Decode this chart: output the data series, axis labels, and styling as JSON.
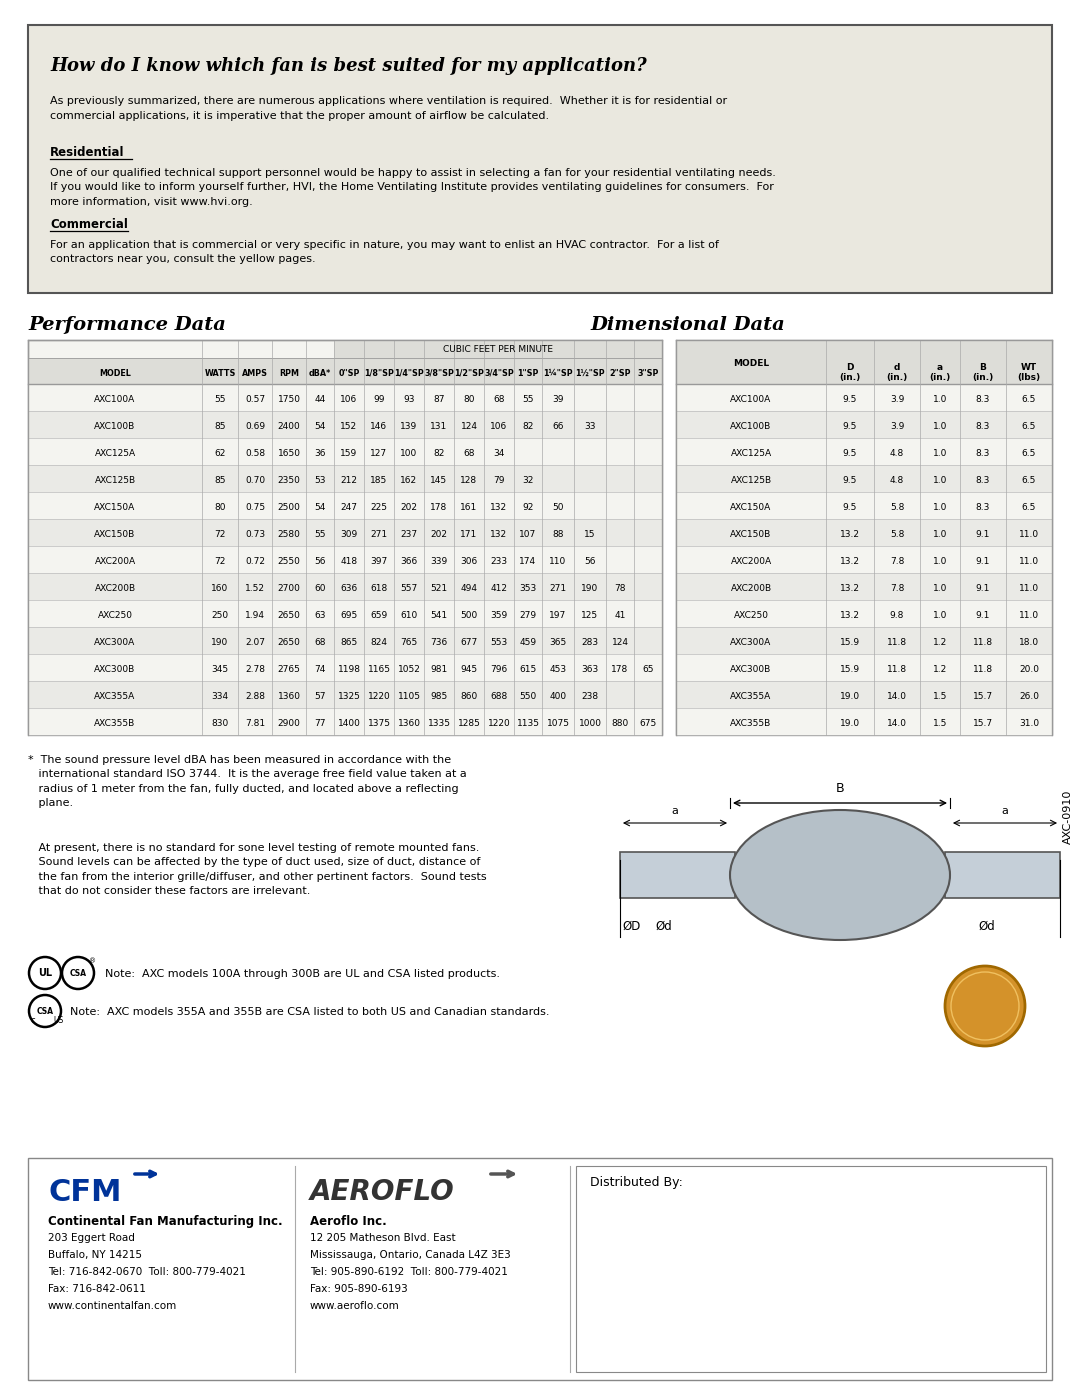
{
  "title_question": "How do I know which fan is best suited for my application?",
  "intro_text": "As previously summarized, there are numerous applications where ventilation is required.  Whether it is for residential or\ncommercial applications, it is imperative that the proper amount of airflow be calculated.",
  "residential_heading": "Residential",
  "residential_text": "One of our qualified technical support personnel would be happy to assist in selecting a fan for your residential ventilating needs.\nIf you would like to inform yourself further, HVI, the Home Ventilating Institute provides ventilating guidelines for consumers.  For\nmore information, visit www.hvi.org.",
  "commercial_heading": "Commercial",
  "commercial_text": "For an application that is commercial or very specific in nature, you may want to enlist an HVAC contractor.  For a list of\ncontractors near you, consult the yellow pages.",
  "perf_title": "Performance Data",
  "dim_title": "Dimensional Data",
  "cfm_subheader": "CUBIC FEET PER MINUTE",
  "perf_col_headers": [
    "MODEL",
    "WATTS",
    "AMPS",
    "RPM",
    "dBA*",
    "0\"SP",
    "1/8\"SP",
    "1/4\"SP",
    "3/8\"SP",
    "1/2\"SP",
    "3/4\"SP",
    "1\"SP",
    "1¼\"SP",
    "1½\"SP",
    "2\"SP",
    "3\"SP"
  ],
  "perf_data": [
    [
      "AXC100A",
      "55",
      "0.57",
      "1750",
      "44",
      "106",
      "99",
      "93",
      "87",
      "80",
      "68",
      "55",
      "39",
      "",
      "",
      ""
    ],
    [
      "AXC100B",
      "85",
      "0.69",
      "2400",
      "54",
      "152",
      "146",
      "139",
      "131",
      "124",
      "106",
      "82",
      "66",
      "33",
      "",
      ""
    ],
    [
      "AXC125A",
      "62",
      "0.58",
      "1650",
      "36",
      "159",
      "127",
      "100",
      "82",
      "68",
      "34",
      "",
      "",
      "",
      "",
      ""
    ],
    [
      "AXC125B",
      "85",
      "0.70",
      "2350",
      "53",
      "212",
      "185",
      "162",
      "145",
      "128",
      "79",
      "32",
      "",
      "",
      "",
      ""
    ],
    [
      "AXC150A",
      "80",
      "0.75",
      "2500",
      "54",
      "247",
      "225",
      "202",
      "178",
      "161",
      "132",
      "92",
      "50",
      "",
      "",
      ""
    ],
    [
      "AXC150B",
      "72",
      "0.73",
      "2580",
      "55",
      "309",
      "271",
      "237",
      "202",
      "171",
      "132",
      "107",
      "88",
      "15",
      "",
      ""
    ],
    [
      "AXC200A",
      "72",
      "0.72",
      "2550",
      "56",
      "418",
      "397",
      "366",
      "339",
      "306",
      "233",
      "174",
      "110",
      "56",
      "",
      ""
    ],
    [
      "AXC200B",
      "160",
      "1.52",
      "2700",
      "60",
      "636",
      "618",
      "557",
      "521",
      "494",
      "412",
      "353",
      "271",
      "190",
      "78",
      ""
    ],
    [
      "AXC250",
      "250",
      "1.94",
      "2650",
      "63",
      "695",
      "659",
      "610",
      "541",
      "500",
      "359",
      "279",
      "197",
      "125",
      "41",
      ""
    ],
    [
      "AXC300A",
      "190",
      "2.07",
      "2650",
      "68",
      "865",
      "824",
      "765",
      "736",
      "677",
      "553",
      "459",
      "365",
      "283",
      "124",
      ""
    ],
    [
      "AXC300B",
      "345",
      "2.78",
      "2765",
      "74",
      "1198",
      "1165",
      "1052",
      "981",
      "945",
      "796",
      "615",
      "453",
      "363",
      "178",
      "65"
    ],
    [
      "AXC355A",
      "334",
      "2.88",
      "1360",
      "57",
      "1325",
      "1220",
      "1105",
      "985",
      "860",
      "688",
      "550",
      "400",
      "238",
      "",
      ""
    ],
    [
      "AXC355B",
      "830",
      "7.81",
      "2900",
      "77",
      "1400",
      "1375",
      "1360",
      "1335",
      "1285",
      "1220",
      "1135",
      "1075",
      "1000",
      "880",
      "675"
    ]
  ],
  "dim_col_h1": [
    "MODEL",
    "D",
    "d",
    "a",
    "B",
    "WT"
  ],
  "dim_col_h2": [
    "",
    "(in.)",
    "(in.)",
    "(in.)",
    "(in.)",
    "(lbs)"
  ],
  "dim_data": [
    [
      "AXC100A",
      "9.5",
      "3.9",
      "1.0",
      "8.3",
      "6.5"
    ],
    [
      "AXC100B",
      "9.5",
      "3.9",
      "1.0",
      "8.3",
      "6.5"
    ],
    [
      "AXC125A",
      "9.5",
      "4.8",
      "1.0",
      "8.3",
      "6.5"
    ],
    [
      "AXC125B",
      "9.5",
      "4.8",
      "1.0",
      "8.3",
      "6.5"
    ],
    [
      "AXC150A",
      "9.5",
      "5.8",
      "1.0",
      "8.3",
      "6.5"
    ],
    [
      "AXC150B",
      "13.2",
      "5.8",
      "1.0",
      "9.1",
      "11.0"
    ],
    [
      "AXC200A",
      "13.2",
      "7.8",
      "1.0",
      "9.1",
      "11.0"
    ],
    [
      "AXC200B",
      "13.2",
      "7.8",
      "1.0",
      "9.1",
      "11.0"
    ],
    [
      "AXC250",
      "13.2",
      "9.8",
      "1.0",
      "9.1",
      "11.0"
    ],
    [
      "AXC300A",
      "15.9",
      "11.8",
      "1.2",
      "11.8",
      "18.0"
    ],
    [
      "AXC300B",
      "15.9",
      "11.8",
      "1.2",
      "11.8",
      "20.0"
    ],
    [
      "AXC355A",
      "19.0",
      "14.0",
      "1.5",
      "15.7",
      "26.0"
    ],
    [
      "AXC355B",
      "19.0",
      "14.0",
      "1.5",
      "15.7",
      "31.0"
    ]
  ],
  "footnote1": "*  The sound pressure level dBA has been measured in accordance with the\n   international standard ISO 3744.  It is the average free field value taken at a\n   radius of 1 meter from the fan, fully ducted, and located above a reflecting\n   plane.",
  "footnote2": "   At present, there is no standard for sone level testing of remote mounted fans.\n   Sound levels can be affected by the type of duct used, size of duct, distance of\n   the fan from the interior grille/diffuser, and other pertinent factors.  Sound tests\n   that do not consider these factors are irrelevant.",
  "ul_note": "Note:  AXC models 100A through 300B are UL and CSA listed products.",
  "csa_note": "Note:  AXC models 355A and 355B are CSA listed to both US and Canadian standards.",
  "cfm_logo": "CFM",
  "cfm_company": "Continental Fan Manufacturing Inc.",
  "cfm_addr1": "203 Eggert Road",
  "cfm_addr2": "Buffalo, NY 14215",
  "cfm_addr3": "Tel: 716-842-0670  Toll: 800-779-4021",
  "cfm_addr4": "Fax: 716-842-0611",
  "cfm_addr5": "www.continentalfan.com",
  "aeroflo_logo": "AEROFLO",
  "aeroflo_company": "Aeroflo Inc.",
  "aeroflo_addr1": "12 205 Matheson Blvd. East",
  "aeroflo_addr2": "Mississauga, Ontario, Canada L4Z 3E3",
  "aeroflo_addr3": "Tel: 905-890-6192  Toll: 800-779-4021",
  "aeroflo_addr4": "Fax: 905-890-6193",
  "aeroflo_addr5": "www.aeroflo.com",
  "distributed_by": "Distributed By:",
  "product_code": "AXC-0910",
  "page_bg": "#ffffff",
  "box_bg": "#eae8df",
  "table_bg_even": "#f4f4f0",
  "table_bg_odd": "#eaeae6",
  "table_border": "#999999",
  "header_bg": "#ddddd8"
}
